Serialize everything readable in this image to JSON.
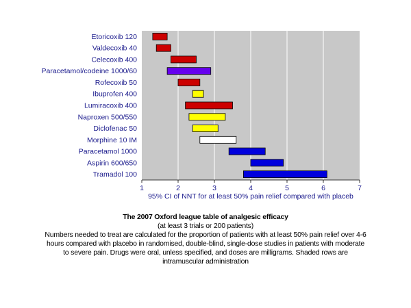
{
  "colors": {
    "plot_background": "#c8c8c8",
    "gridline": "#ffffff",
    "label_text": "#1a1a8c",
    "red": "#cc0000",
    "purple": "#6600ee",
    "yellow": "#ffff00",
    "blue": "#0000dd",
    "white": "#ffffff"
  },
  "chart_data": {
    "type": "bar",
    "orientation": "horizontal-range",
    "xlabel": "95% CI of NNT for at least 50% pain relief compared with placeb",
    "xlim": [
      1,
      7
    ],
    "xticks": [
      "1",
      "2",
      "3",
      "4",
      "5",
      "6",
      "7"
    ],
    "grid": "vertical",
    "legend": "none",
    "bars": [
      {
        "label": "Etoricoxib 120",
        "low": 1.3,
        "high": 1.7,
        "color": "red"
      },
      {
        "label": "Valdecoxib 40",
        "low": 1.4,
        "high": 1.8,
        "color": "red"
      },
      {
        "label": "Celecoxib 400",
        "low": 1.8,
        "high": 2.5,
        "color": "red"
      },
      {
        "label": "Paracetamol/codeine 1000/60",
        "low": 1.7,
        "high": 2.9,
        "color": "purple"
      },
      {
        "label": "Rofecoxib 50",
        "low": 2.0,
        "high": 2.6,
        "color": "red"
      },
      {
        "label": "Ibuprofen 400",
        "low": 2.4,
        "high": 2.7,
        "color": "yellow"
      },
      {
        "label": "Lumiracoxib 400",
        "low": 2.2,
        "high": 3.5,
        "color": "red"
      },
      {
        "label": "Naproxen 500/550",
        "low": 2.3,
        "high": 3.3,
        "color": "yellow"
      },
      {
        "label": "Diclofenac 50",
        "low": 2.4,
        "high": 3.1,
        "color": "yellow"
      },
      {
        "label": "Morphine 10 IM",
        "low": 2.6,
        "high": 3.6,
        "color": "white"
      },
      {
        "label": "Paracetamol 1000",
        "low": 3.4,
        "high": 4.4,
        "color": "blue"
      },
      {
        "label": "Aspirin 600/650",
        "low": 4.0,
        "high": 4.9,
        "color": "blue"
      },
      {
        "label": "Tramadol 100",
        "low": 3.8,
        "high": 6.1,
        "color": "blue"
      }
    ]
  },
  "caption": {
    "title": "The 2007 Oxford league table of analgesic efficacy",
    "subtitle": "(at least 3 trials or 200 patients)",
    "body_line1": "Numbers needed to treat are calculated for the proportion of patients with at least 50% pain relief over 4-6",
    "body_line2": "hours compared with placebo in randomised, double-blind, single-dose studies in patients with moderate",
    "body_line3": "to severe pain. Drugs were oral, unless specified, and doses are milligrams. Shaded rows are",
    "body_line4": "intramuscular administration"
  }
}
